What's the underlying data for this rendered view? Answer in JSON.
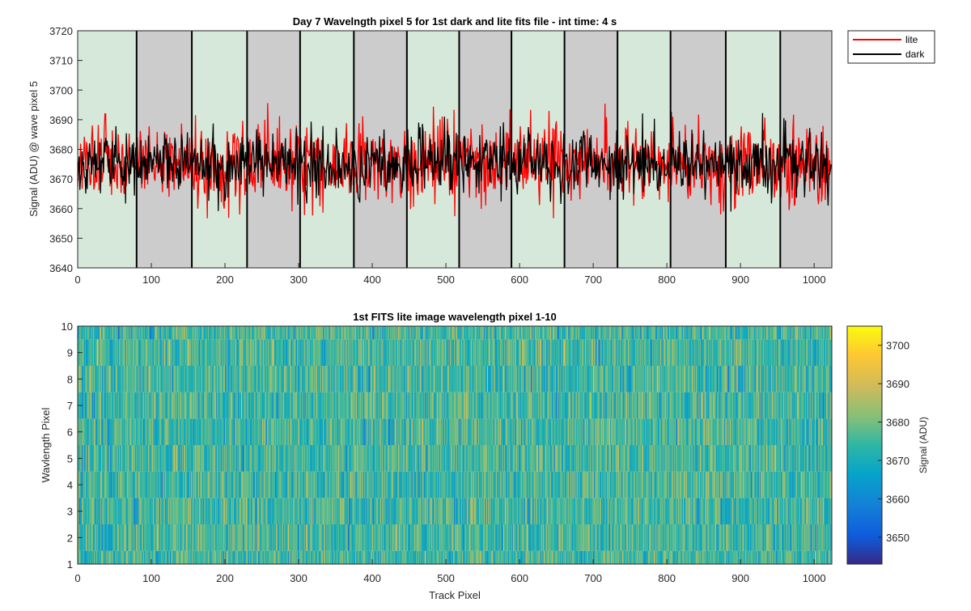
{
  "figure": {
    "top_chart": {
      "title": "Day 7 Wavelngth pixel 5 for 1st dark and lite fits file - int time: 4 s",
      "ylabel": "Signal (ADU) @ wave pixel 5",
      "xticks": [
        "0",
        "100",
        "200",
        "300",
        "400",
        "500",
        "600",
        "700",
        "800",
        "900",
        "1000"
      ],
      "yticks": [
        "3640",
        "3650",
        "3660",
        "3670",
        "3680",
        "3690",
        "3700",
        "3710",
        "3720"
      ],
      "legend": {
        "lite": "lite",
        "dark": "dark"
      }
    },
    "bottom_chart": {
      "title": "1st FITS lite image wavelength pixel 1-10",
      "xlabel": "Track Pixel",
      "ylabel": "Wavlength Pixel",
      "xticks": [
        "0",
        "100",
        "200",
        "300",
        "400",
        "500",
        "600",
        "700",
        "800",
        "900",
        "1000"
      ],
      "yticks": [
        "1",
        "2",
        "3",
        "4",
        "5",
        "6",
        "7",
        "8",
        "9",
        "10"
      ],
      "colorbar_label": "Signal (ADU)",
      "colorbar_ticks": [
        "3650",
        "3660",
        "3670",
        "3680",
        "3690",
        "3700"
      ]
    }
  },
  "chart_data": [
    {
      "type": "line",
      "title": "Day 7 Wavelngth pixel 5 for 1st dark and lite fits file - int time: 4 s",
      "xlabel": "",
      "ylabel": "Signal (ADU) @ wave pixel 5",
      "xlim": [
        0,
        1024
      ],
      "ylim": [
        3640,
        3720
      ],
      "legend_position": "outside top-right",
      "series": [
        {
          "name": "lite",
          "color": "#ff0000",
          "n_points": 1024,
          "mean": 3675,
          "approx_std": 7,
          "min": 3650,
          "max": 3703
        },
        {
          "name": "dark",
          "color": "#000000",
          "n_points": 1024,
          "mean": 3675,
          "approx_std": 5.5,
          "min": 3653,
          "max": 3693
        }
      ],
      "background_bands": [
        {
          "x": [
            0,
            80
          ],
          "color": "#d6e8d9"
        },
        {
          "x": [
            80,
            155
          ],
          "color": "#cccccc"
        },
        {
          "x": [
            155,
            230
          ],
          "color": "#d6e8d9"
        },
        {
          "x": [
            230,
            302
          ],
          "color": "#cccccc"
        },
        {
          "x": [
            302,
            375
          ],
          "color": "#d6e8d9"
        },
        {
          "x": [
            375,
            447
          ],
          "color": "#cccccc"
        },
        {
          "x": [
            447,
            518
          ],
          "color": "#d6e8d9"
        },
        {
          "x": [
            518,
            589
          ],
          "color": "#cccccc"
        },
        {
          "x": [
            589,
            661
          ],
          "color": "#d6e8d9"
        },
        {
          "x": [
            661,
            733
          ],
          "color": "#cccccc"
        },
        {
          "x": [
            733,
            805
          ],
          "color": "#d6e8d9"
        },
        {
          "x": [
            805,
            880
          ],
          "color": "#cccccc"
        },
        {
          "x": [
            880,
            954
          ],
          "color": "#d6e8d9"
        },
        {
          "x": [
            954,
            1024
          ],
          "color": "#cccccc"
        }
      ]
    },
    {
      "type": "heatmap",
      "title": "1st FITS lite image wavelength pixel 1-10",
      "xlabel": "Track Pixel",
      "ylabel": "Wavlength Pixel",
      "xlim": [
        0,
        1024
      ],
      "ylim": [
        1,
        10
      ],
      "rows": 10,
      "cols": 1024,
      "colormap": "parula",
      "color_range": [
        3643,
        3705
      ],
      "colorbar_label": "Signal (ADU)",
      "colorbar_ticks": [
        3650,
        3660,
        3670,
        3680,
        3690,
        3700
      ]
    }
  ]
}
